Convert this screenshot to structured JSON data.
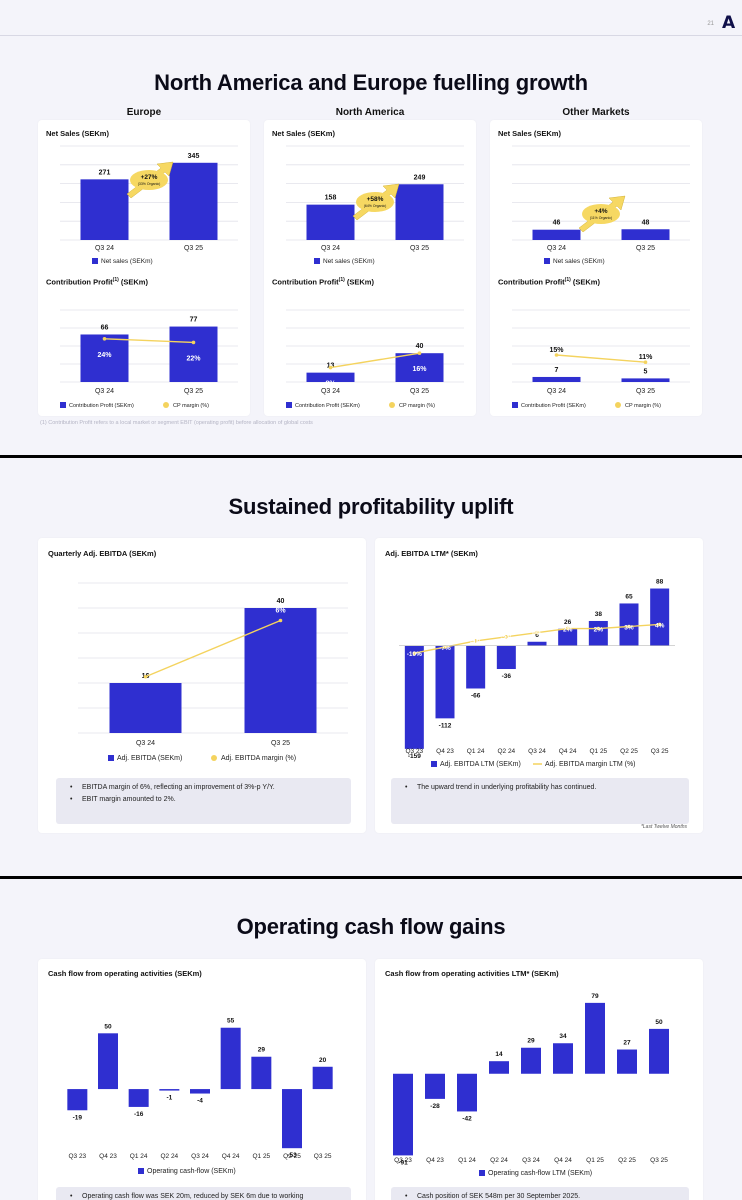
{
  "colors": {
    "bar": "#2f2fd0",
    "bar_light": "#6a6aee",
    "line": "#f4d35e",
    "background": "#f4f4fa"
  },
  "slide1": {
    "page_number": "21",
    "title": "North America and Europe fuelling growth",
    "columns": [
      {
        "header": "Europe",
        "net_sales_title": "Net Sales (SEKm)",
        "growth_badge": "+27%",
        "growth_sub": "(33% Organic)",
        "net_sales_legend": "Net sales (SEKm)",
        "cp_title": "Contribution Profit",
        "cp_sup": "(1)",
        "cp_unit": " (SEKm)",
        "cp_legend_bar": "Contribution Profit (SEKm)",
        "cp_legend_line": "CP margin (%)"
      },
      {
        "header": "North America",
        "net_sales_title": "Net Sales (SEKm)",
        "growth_badge": "+58%",
        "growth_sub": "(64% Organic)",
        "net_sales_legend": "Net sales (SEKm)",
        "cp_title": "Contribution Profit",
        "cp_sup": "(1)",
        "cp_unit": " (SEKm)",
        "cp_legend_bar": "Contribution Profit (SEKm)",
        "cp_legend_line": "CP margin (%)"
      },
      {
        "header": "Other Markets",
        "net_sales_title": "Net Sales (SEKm)",
        "growth_badge": "+4%",
        "growth_sub": "(11% Organic)",
        "net_sales_legend": "Net sales (SEKm)",
        "cp_title": "Contribution Profit",
        "cp_sup": "(1)",
        "cp_unit": " (SEKm)",
        "cp_legend_bar": "Contribution Profit (SEKm)",
        "cp_legend_line": "CP margin (%)"
      }
    ],
    "footnote": "(1) Contribution Profit refers to a local market or segment EBIT (operating profit) before allocation of global costs"
  },
  "slide2": {
    "page_number": "22",
    "title": "Sustained profitability uplift",
    "left_title": "Quarterly Adj. EBITDA (SEKm)",
    "right_title": "Adj. EBITDA LTM* (SEKm)",
    "left_legend_bar": "Adj. EBITDA (SEKm)",
    "left_legend_line": "Adj. EBITDA margin (%)",
    "right_legend_bar": "Adj. EBITDA LTM (SEKm)",
    "right_legend_line": "Adj. EBITDA margin LTM (%)",
    "left_bullets": [
      "EBITDA margin of 6%, reflecting an improvement of 3%-p Y/Y.",
      "EBIT margin amounted to 2%."
    ],
    "right_bullets": [
      "The upward trend in underlying profitability has continued."
    ],
    "ltm_note": "*Last Twelve Months"
  },
  "slide3": {
    "page_number": "23",
    "title": "Operating cash flow gains",
    "left_title": "Cash flow from operating activities (SEKm)",
    "right_title": "Cash flow from operating activities LTM* (SEKm)",
    "left_legend": "Operating cash-flow (SEKm)",
    "right_legend": "Operating cash-flow LTM (SEKm)",
    "left_bullet": "Operating cash flow was SEK 20m, reduced by SEK 6m due to working",
    "right_bullet": "Cash position of SEK 548m per 30 September 2025."
  },
  "chart_data": [
    {
      "id": "eu_sales",
      "type": "bar",
      "title": "Net Sales (SEKm)",
      "categories": [
        "Q3 24",
        "Q3 25"
      ],
      "series": [
        {
          "name": "Net sales (SEKm)",
          "values": [
            271,
            345
          ]
        }
      ],
      "ylim": [
        0,
        420
      ]
    },
    {
      "id": "na_sales",
      "type": "bar",
      "title": "Net Sales (SEKm)",
      "categories": [
        "Q3 24",
        "Q3 25"
      ],
      "series": [
        {
          "name": "Net sales (SEKm)",
          "values": [
            158,
            249
          ]
        }
      ],
      "ylim": [
        0,
        420
      ]
    },
    {
      "id": "om_sales",
      "type": "bar",
      "title": "Net Sales (SEKm)",
      "categories": [
        "Q3 24",
        "Q3 25"
      ],
      "series": [
        {
          "name": "Net sales (SEKm)",
          "values": [
            46,
            48
          ]
        }
      ],
      "ylim": [
        0,
        420
      ]
    },
    {
      "id": "eu_cp",
      "type": "bar",
      "title": "Contribution Profit (SEKm)",
      "categories": [
        "Q3 24",
        "Q3 25"
      ],
      "series": [
        {
          "name": "Contribution Profit (SEKm)",
          "values": [
            66,
            77
          ]
        },
        {
          "name": "CP margin (%)",
          "values": [
            24,
            22
          ],
          "labels": [
            "24%",
            "22%"
          ]
        }
      ],
      "ylim": [
        0,
        100
      ]
    },
    {
      "id": "na_cp",
      "type": "bar",
      "title": "Contribution Profit (SEKm)",
      "categories": [
        "Q3 24",
        "Q3 25"
      ],
      "series": [
        {
          "name": "Contribution Profit (SEKm)",
          "values": [
            13,
            40
          ]
        },
        {
          "name": "CP margin (%)",
          "values": [
            8,
            16
          ],
          "labels": [
            "8%",
            "16%"
          ]
        }
      ],
      "ylim": [
        0,
        100
      ]
    },
    {
      "id": "om_cp",
      "type": "bar",
      "title": "Contribution Profit (SEKm)",
      "categories": [
        "Q3 24",
        "Q3 25"
      ],
      "series": [
        {
          "name": "Contribution Profit (SEKm)",
          "values": [
            7,
            5
          ]
        },
        {
          "name": "CP margin (%)",
          "values": [
            15,
            11
          ],
          "labels": [
            "15%",
            "11%"
          ]
        }
      ],
      "ylim": [
        0,
        100
      ]
    },
    {
      "id": "ebitda_q",
      "type": "bar",
      "title": "Quarterly Adj. EBITDA (SEKm)",
      "categories": [
        "Q3 24",
        "Q3 25"
      ],
      "series": [
        {
          "name": "Adj. EBITDA (SEKm)",
          "values": [
            16,
            40
          ]
        },
        {
          "name": "Adj. EBITDA margin (%)",
          "values": [
            3,
            6
          ],
          "labels": [
            "3%",
            "6%"
          ]
        }
      ],
      "ylim": [
        0,
        48
      ]
    },
    {
      "id": "ebitda_ltm",
      "type": "bar",
      "title": "Adj. EBITDA LTM* (SEKm)",
      "categories": [
        "Q3 23",
        "Q4 23",
        "Q1 24",
        "Q2 24",
        "Q3 24",
        "Q4 24",
        "Q1 25",
        "Q2 25",
        "Q3 25"
      ],
      "series": [
        {
          "name": "Adj. EBITDA LTM (SEKm)",
          "values": [
            -159,
            -112,
            -66,
            -36,
            6,
            26,
            38,
            65,
            88
          ]
        },
        {
          "name": "Adj. EBITDA margin LTM (%)",
          "values": [
            -10,
            -7,
            -4,
            -2,
            0,
            2,
            2,
            3,
            4
          ],
          "labels": [
            "-10%",
            "-7%",
            "-4%",
            "-2%",
            "0%",
            "2%",
            "2%",
            "3%",
            "4%"
          ]
        }
      ],
      "ylim": [
        -170,
        115
      ]
    },
    {
      "id": "ocf_q",
      "type": "bar",
      "title": "Cash flow from operating activities (SEKm)",
      "categories": [
        "Q3 23",
        "Q4 23",
        "Q1 24",
        "Q2 24",
        "Q3 24",
        "Q4 24",
        "Q1 25",
        "Q2 25",
        "Q3 25"
      ],
      "series": [
        {
          "name": "Operating cash-flow (SEKm)",
          "values": [
            -19,
            50,
            -16,
            -1,
            -4,
            55,
            29,
            -53,
            20
          ]
        }
      ],
      "ylim": [
        -60,
        70
      ]
    },
    {
      "id": "ocf_ltm",
      "type": "bar",
      "title": "Cash flow from operating activities LTM* (SEKm)",
      "categories": [
        "Q3 23",
        "Q4 23",
        "Q1 24",
        "Q2 24",
        "Q3 24",
        "Q4 24",
        "Q1 25",
        "Q2 25",
        "Q3 25"
      ],
      "series": [
        {
          "name": "Operating cash-flow LTM (SEKm)",
          "values": [
            -91,
            -28,
            -42,
            14,
            29,
            34,
            79,
            27,
            50
          ]
        }
      ],
      "ylim": [
        -95,
        90
      ]
    }
  ]
}
